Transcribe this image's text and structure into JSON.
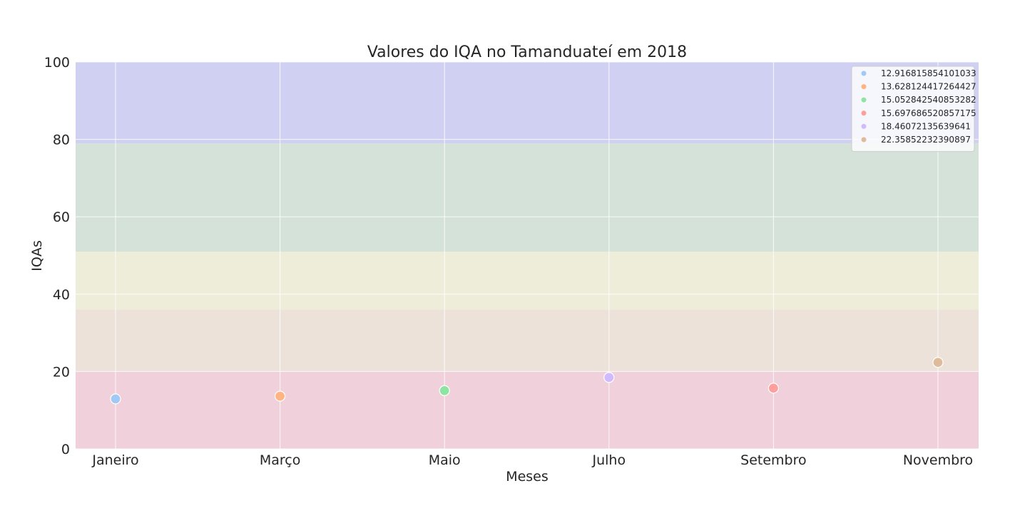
{
  "chart_data": {
    "type": "scatter",
    "title": "Valores do IQA no Tamanduateí em 2018",
    "xlabel": "Meses",
    "ylabel": "IQAs",
    "categories": [
      "Janeiro",
      "Março",
      "Maio",
      "Julho",
      "Setembro",
      "Novembro"
    ],
    "ylim": [
      0,
      100
    ],
    "yticks": [
      0,
      20,
      40,
      60,
      80,
      100
    ],
    "grid": true,
    "legend_position": "top-right",
    "bands": [
      {
        "from": 0,
        "to": 20,
        "color": "#e8b7c6"
      },
      {
        "from": 20,
        "to": 36,
        "color": "#e4d3c6"
      },
      {
        "from": 36,
        "to": 51,
        "color": "#e5e3c6"
      },
      {
        "from": 51,
        "to": 79,
        "color": "#bfd3c6"
      },
      {
        "from": 79,
        "to": 100,
        "color": "#b7b7eb"
      }
    ],
    "series": [
      {
        "name": "12.916815854101033",
        "x": "Janeiro",
        "y": 12.916815854101033,
        "color": "#a1c9f4"
      },
      {
        "name": "13.628124417264427",
        "x": "Março",
        "y": 13.628124417264427,
        "color": "#ffb482"
      },
      {
        "name": "15.052842540853282",
        "x": "Maio",
        "y": 15.052842540853282,
        "color": "#8de5a1"
      },
      {
        "name": "15.697686520857175",
        "x": "Setembro",
        "y": 15.697686520857175,
        "color": "#ff9f9b"
      },
      {
        "name": "18.46072135639641",
        "x": "Julho",
        "y": 18.46072135639641,
        "color": "#d0bbff"
      },
      {
        "name": "22.35852232390897",
        "x": "Novembro",
        "y": 22.35852232390897,
        "color": "#debb9b"
      }
    ]
  }
}
